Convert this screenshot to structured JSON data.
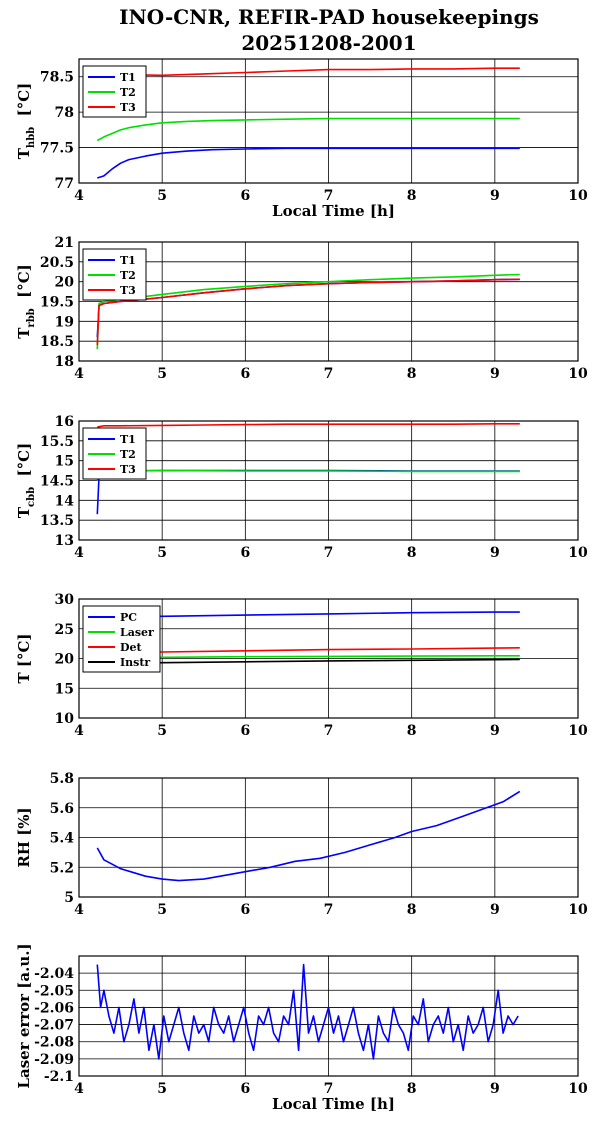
{
  "figure": {
    "title_line1": "INO-CNR, REFIR-PAD housekeepings",
    "title_line2": "20251208-2001"
  },
  "colors": {
    "T1": "#0000ff",
    "T2": "#00e000",
    "T3": "#ff0000",
    "PC": "#0000ff",
    "Laser": "#00e000",
    "Det": "#ff0000",
    "Instr": "#000000",
    "RH": "#0000ff",
    "LaserError": "#0000ff"
  },
  "chart_data": [
    {
      "type": "line",
      "ylabel_main": "T",
      "ylabel_sub": "hbb",
      "ylabel_unit": "[°C]",
      "xlabel": "Local Time [h]",
      "xlim": [
        4,
        10
      ],
      "ylim": [
        77,
        78.75
      ],
      "xticks": [
        4,
        5,
        6,
        7,
        8,
        9,
        10
      ],
      "yticks": [
        77,
        77.5,
        78,
        78.5
      ],
      "ytick_labels": [
        "77",
        "77.5",
        "78",
        "78.5"
      ],
      "grid": true,
      "legend_position": "top-left",
      "series": [
        {
          "name": "T1",
          "x": [
            4.22,
            4.3,
            4.4,
            4.5,
            4.6,
            4.8,
            5.0,
            5.3,
            5.6,
            6.0,
            6.5,
            7.0,
            7.5,
            8.0,
            8.5,
            9.0,
            9.3
          ],
          "y": [
            77.07,
            77.1,
            77.2,
            77.28,
            77.33,
            77.38,
            77.42,
            77.45,
            77.47,
            77.48,
            77.49,
            77.49,
            77.49,
            77.49,
            77.49,
            77.49,
            77.49
          ]
        },
        {
          "name": "T2",
          "x": [
            4.22,
            4.3,
            4.4,
            4.5,
            4.6,
            4.8,
            5.0,
            5.3,
            5.6,
            6.0,
            6.5,
            7.0,
            7.5,
            8.0,
            8.5,
            9.0,
            9.3
          ],
          "y": [
            77.6,
            77.65,
            77.7,
            77.75,
            77.78,
            77.82,
            77.85,
            77.87,
            77.88,
            77.89,
            77.9,
            77.91,
            77.91,
            77.91,
            77.91,
            77.91,
            77.91
          ]
        },
        {
          "name": "T3",
          "x": [
            4.22,
            4.5,
            5.0,
            5.5,
            6.0,
            6.5,
            7.0,
            7.5,
            8.0,
            8.5,
            9.0,
            9.3
          ],
          "y": [
            78.52,
            78.53,
            78.52,
            78.54,
            78.56,
            78.58,
            78.6,
            78.6,
            78.61,
            78.61,
            78.62,
            78.62
          ]
        }
      ]
    },
    {
      "type": "line",
      "ylabel_main": "T",
      "ylabel_sub": "rbb",
      "ylabel_unit": "[°C]",
      "xlabel": "",
      "xlim": [
        4,
        10
      ],
      "ylim": [
        18,
        21
      ],
      "xticks": [
        4,
        5,
        6,
        7,
        8,
        9,
        10
      ],
      "yticks": [
        18,
        18.5,
        19,
        19.5,
        20,
        20.5,
        21
      ],
      "ytick_labels": [
        "18",
        "18.5",
        "19",
        "19.5",
        "20",
        "20.5",
        "21"
      ],
      "grid": true,
      "legend_position": "top-left",
      "series": [
        {
          "name": "T1",
          "x": [
            4.22,
            4.24,
            4.3,
            4.5,
            5.0,
            5.5,
            6.0,
            6.5,
            7.0,
            7.5,
            8.0,
            8.5,
            9.0,
            9.3
          ],
          "y": [
            18.6,
            19.4,
            19.45,
            19.5,
            19.6,
            19.72,
            19.82,
            19.9,
            19.95,
            19.98,
            20.0,
            20.02,
            20.05,
            20.06
          ]
        },
        {
          "name": "T2",
          "x": [
            4.22,
            4.24,
            4.3,
            4.5,
            5.0,
            5.5,
            6.0,
            6.5,
            7.0,
            7.5,
            8.0,
            8.5,
            9.0,
            9.3
          ],
          "y": [
            18.3,
            19.45,
            19.5,
            19.55,
            19.68,
            19.8,
            19.88,
            19.95,
            20.0,
            20.05,
            20.09,
            20.12,
            20.16,
            20.18
          ]
        },
        {
          "name": "T3",
          "x": [
            4.22,
            4.24,
            4.3,
            4.5,
            5.0,
            5.5,
            6.0,
            6.5,
            7.0,
            7.5,
            8.0,
            8.5,
            9.0,
            9.3
          ],
          "y": [
            18.4,
            19.4,
            19.45,
            19.5,
            19.6,
            19.72,
            19.82,
            19.9,
            19.95,
            19.98,
            20.0,
            20.02,
            20.05,
            20.06
          ]
        }
      ]
    },
    {
      "type": "line",
      "ylabel_main": "T",
      "ylabel_sub": "cbb",
      "ylabel_unit": "[°C]",
      "xlabel": "",
      "xlim": [
        4,
        10
      ],
      "ylim": [
        13,
        16
      ],
      "xticks": [
        4,
        5,
        6,
        7,
        8,
        9,
        10
      ],
      "yticks": [
        13,
        13.5,
        14,
        14.5,
        15,
        15.5,
        16
      ],
      "ytick_labels": [
        "13",
        "13.5",
        "14",
        "14.5",
        "15",
        "15.5",
        "16"
      ],
      "grid": true,
      "legend_position": "top-left",
      "series": [
        {
          "name": "T1",
          "x": [
            4.22,
            4.24,
            4.28,
            4.4,
            5.0,
            6.0,
            7.0,
            8.0,
            9.0,
            9.3
          ],
          "y": [
            13.65,
            14.6,
            14.72,
            14.74,
            14.75,
            14.75,
            14.75,
            14.74,
            14.74,
            14.74
          ]
        },
        {
          "name": "T2",
          "x": [
            4.22,
            4.24,
            4.28,
            4.4,
            5.0,
            6.0,
            7.0,
            8.0,
            9.0,
            9.3
          ],
          "y": [
            14.5,
            14.68,
            14.72,
            14.74,
            14.75,
            14.74,
            14.74,
            14.73,
            14.73,
            14.73
          ]
        },
        {
          "name": "T3",
          "x": [
            4.22,
            4.3,
            4.5,
            5.0,
            5.5,
            6.0,
            6.5,
            7.0,
            7.5,
            8.0,
            8.5,
            9.0,
            9.3
          ],
          "y": [
            15.85,
            15.88,
            15.88,
            15.89,
            15.9,
            15.91,
            15.92,
            15.92,
            15.92,
            15.92,
            15.92,
            15.93,
            15.93
          ]
        }
      ]
    },
    {
      "type": "line",
      "ylabel_main": "T",
      "ylabel_sub": "",
      "ylabel_unit": "[°C]",
      "xlabel": "",
      "xlim": [
        4,
        10
      ],
      "ylim": [
        10,
        30
      ],
      "xticks": [
        4,
        5,
        6,
        7,
        8,
        9,
        10
      ],
      "yticks": [
        10,
        15,
        20,
        25,
        30
      ],
      "ytick_labels": [
        "10",
        "15",
        "20",
        "25",
        "30"
      ],
      "grid": true,
      "legend_position": "top-left",
      "series": [
        {
          "name": "PC",
          "x": [
            4.22,
            5.0,
            6.0,
            7.0,
            8.0,
            9.0,
            9.3
          ],
          "y": [
            27.0,
            27.1,
            27.3,
            27.5,
            27.7,
            27.8,
            27.8
          ]
        },
        {
          "name": "Laser",
          "x": [
            4.22,
            5.0,
            6.0,
            7.0,
            8.0,
            9.0,
            9.3
          ],
          "y": [
            20.1,
            20.2,
            20.3,
            20.35,
            20.4,
            20.45,
            20.45
          ]
        },
        {
          "name": "Det",
          "x": [
            4.22,
            5.0,
            6.0,
            7.0,
            8.0,
            9.0,
            9.3
          ],
          "y": [
            21.0,
            21.1,
            21.3,
            21.5,
            21.6,
            21.75,
            21.8
          ]
        },
        {
          "name": "Instr",
          "x": [
            4.22,
            5.0,
            6.0,
            7.0,
            8.0,
            9.0,
            9.3
          ],
          "y": [
            19.1,
            19.3,
            19.45,
            19.6,
            19.7,
            19.8,
            19.85
          ]
        }
      ]
    },
    {
      "type": "line",
      "ylabel_main": "RH",
      "ylabel_sub": "",
      "ylabel_unit": "[%]",
      "xlabel": "",
      "xlim": [
        4,
        10
      ],
      "ylim": [
        5,
        5.8
      ],
      "xticks": [
        4,
        5,
        6,
        7,
        8,
        9,
        10
      ],
      "yticks": [
        5,
        5.2,
        5.4,
        5.6,
        5.8
      ],
      "ytick_labels": [
        "5",
        "5.2",
        "5.4",
        "5.6",
        "5.8"
      ],
      "grid": true,
      "legend_position": "none",
      "series": [
        {
          "name": "",
          "x": [
            4.22,
            4.3,
            4.5,
            4.8,
            5.0,
            5.2,
            5.5,
            5.8,
            6.0,
            6.3,
            6.6,
            6.9,
            7.2,
            7.5,
            7.8,
            8.0,
            8.3,
            8.6,
            8.9,
            9.1,
            9.3
          ],
          "y": [
            5.33,
            5.25,
            5.19,
            5.14,
            5.12,
            5.11,
            5.12,
            5.15,
            5.17,
            5.2,
            5.24,
            5.26,
            5.3,
            5.35,
            5.4,
            5.44,
            5.48,
            5.54,
            5.6,
            5.64,
            5.71
          ]
        }
      ]
    },
    {
      "type": "line",
      "ylabel_main": "Laser error",
      "ylabel_sub": "",
      "ylabel_unit": "[a.u.]",
      "xlabel": "Local Time [h]",
      "xlim": [
        4,
        10
      ],
      "ylim": [
        -2.1,
        -2.03
      ],
      "xticks": [
        4,
        5,
        6,
        7,
        8,
        9,
        10
      ],
      "yticks": [
        -2.1,
        -2.09,
        -2.08,
        -2.07,
        -2.06,
        -2.05,
        -2.04
      ],
      "ytick_labels": [
        "-2.1",
        "-2.09",
        "-2.08",
        "-2.07",
        "-2.06",
        "-2.05",
        "-2.04"
      ],
      "grid": true,
      "legend_position": "none",
      "series": [
        {
          "name": "",
          "x": [
            4.22,
            4.26,
            4.3,
            4.36,
            4.42,
            4.48,
            4.54,
            4.6,
            4.66,
            4.72,
            4.78,
            4.84,
            4.9,
            4.96,
            5.02,
            5.08,
            5.14,
            5.2,
            5.26,
            5.32,
            5.38,
            5.44,
            5.5,
            5.56,
            5.62,
            5.68,
            5.74,
            5.8,
            5.86,
            5.92,
            5.98,
            6.04,
            6.1,
            6.16,
            6.22,
            6.28,
            6.34,
            6.4,
            6.46,
            6.52,
            6.58,
            6.64,
            6.7,
            6.76,
            6.82,
            6.88,
            6.94,
            7.0,
            7.06,
            7.12,
            7.18,
            7.24,
            7.3,
            7.36,
            7.42,
            7.48,
            7.54,
            7.6,
            7.66,
            7.72,
            7.78,
            7.84,
            7.9,
            7.96,
            8.02,
            8.08,
            8.14,
            8.2,
            8.26,
            8.32,
            8.38,
            8.44,
            8.5,
            8.56,
            8.62,
            8.68,
            8.74,
            8.8,
            8.86,
            8.92,
            8.98,
            9.04,
            9.1,
            9.16,
            9.22,
            9.28
          ],
          "y": [
            -2.035,
            -2.06,
            -2.05,
            -2.065,
            -2.075,
            -2.06,
            -2.08,
            -2.07,
            -2.055,
            -2.075,
            -2.06,
            -2.085,
            -2.07,
            -2.09,
            -2.065,
            -2.08,
            -2.07,
            -2.06,
            -2.075,
            -2.085,
            -2.065,
            -2.075,
            -2.07,
            -2.08,
            -2.06,
            -2.07,
            -2.075,
            -2.065,
            -2.08,
            -2.07,
            -2.06,
            -2.075,
            -2.085,
            -2.065,
            -2.07,
            -2.06,
            -2.075,
            -2.08,
            -2.065,
            -2.07,
            -2.05,
            -2.085,
            -2.035,
            -2.075,
            -2.065,
            -2.08,
            -2.07,
            -2.06,
            -2.075,
            -2.065,
            -2.08,
            -2.07,
            -2.06,
            -2.075,
            -2.085,
            -2.07,
            -2.09,
            -2.065,
            -2.075,
            -2.08,
            -2.06,
            -2.07,
            -2.075,
            -2.085,
            -2.065,
            -2.07,
            -2.055,
            -2.08,
            -2.07,
            -2.065,
            -2.075,
            -2.06,
            -2.08,
            -2.07,
            -2.085,
            -2.065,
            -2.075,
            -2.07,
            -2.06,
            -2.08,
            -2.07,
            -2.05,
            -2.075,
            -2.065,
            -2.07,
            -2.065
          ]
        }
      ]
    }
  ]
}
